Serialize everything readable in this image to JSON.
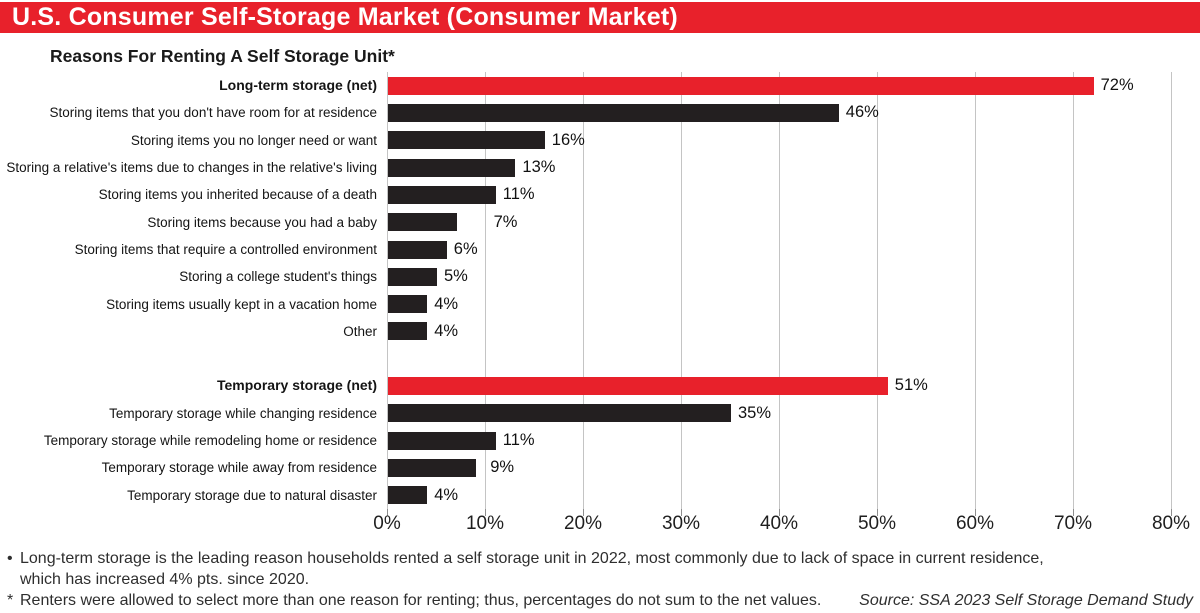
{
  "header": {
    "title": "U.S. Consumer Self-Storage Market (Consumer Market)"
  },
  "chart_title": "Reasons For Renting A Self Storage Unit*",
  "colors": {
    "header_bg": "#e8212b",
    "bar_red": "#e8212b",
    "bar_dark": "#231f20",
    "gridline": "#c4c4c4"
  },
  "chart_data": {
    "type": "bar",
    "orientation": "horizontal",
    "title": "Reasons For Renting A Self Storage Unit*",
    "xlim": [
      0,
      80
    ],
    "x_tick_values": [
      0,
      10,
      20,
      30,
      40,
      50,
      60,
      70,
      80
    ],
    "x_tick_labels": [
      "0%",
      "10%",
      "20%",
      "30%",
      "40%",
      "50%",
      "60%",
      "70%",
      "80%"
    ],
    "grid": true,
    "unit": "%",
    "groups": [
      {
        "rows": [
          {
            "label": "Long-term storage (net)",
            "value": 72,
            "display": "72%",
            "emphasis": true
          },
          {
            "label": "Storing items that you don't have room for at residence",
            "value": 46,
            "display": "46%"
          },
          {
            "label": "Storing items you no longer need or want",
            "value": 16,
            "display": "16%"
          },
          {
            "label": "Storing a relative's items due to changes in the relative's living",
            "value": 13,
            "display": "13%"
          },
          {
            "label": "Storing items you inherited because of a death",
            "value": 11,
            "display": "11%"
          },
          {
            "label": "Storing items because you had a baby",
            "value": 7,
            "display": "7%",
            "label_offset": 30
          },
          {
            "label": "Storing items that require a controlled environment",
            "value": 6,
            "display": "6%"
          },
          {
            "label": "Storing a college student's things",
            "value": 5,
            "display": "5%"
          },
          {
            "label": "Storing items usually kept in a vacation home",
            "value": 4,
            "display": "4%"
          },
          {
            "label": "Other",
            "value": 4,
            "display": "4%"
          }
        ]
      },
      {
        "rows": [
          {
            "label": "Temporary storage (net)",
            "value": 51,
            "display": "51%",
            "emphasis": true
          },
          {
            "label": "Temporary storage while changing residence",
            "value": 35,
            "display": "35%"
          },
          {
            "label": "Temporary storage while remodeling home or residence",
            "value": 11,
            "display": "11%"
          },
          {
            "label": "Temporary storage while away from residence",
            "value": 9,
            "display": "9%",
            "label_offset": 7
          },
          {
            "label": "Temporary storage due to natural disaster",
            "value": 4,
            "display": "4%"
          }
        ]
      }
    ]
  },
  "footnotes": {
    "line1_marker": "•",
    "line1": "Long-term storage is the leading reason households rented a self storage unit in 2022, most commonly due to lack of space in current residence,",
    "line2": "which has increased 4% pts. since 2020.",
    "line3_marker": "*",
    "line3": "Renters were allowed to select more than one reason for renting; thus, percentages do not sum to the net values.",
    "source": "Source: SSA 2023 Self Storage Demand Study"
  }
}
